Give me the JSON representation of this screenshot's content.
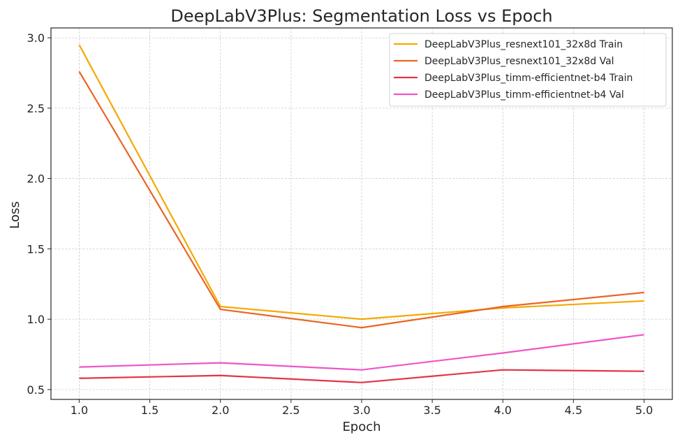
{
  "chart_data": {
    "type": "line",
    "title": "DeepLabV3Plus: Segmentation Loss vs Epoch",
    "xlabel": "Epoch",
    "ylabel": "Loss",
    "xlim": [
      0.8,
      5.2
    ],
    "ylim": [
      0.43,
      3.07
    ],
    "xticks": [
      "1.0",
      "1.5",
      "2.0",
      "2.5",
      "3.0",
      "3.5",
      "4.0",
      "4.5",
      "5.0"
    ],
    "yticks": [
      "0.5",
      "1.0",
      "1.5",
      "2.0",
      "2.5",
      "3.0"
    ],
    "grid": true,
    "legend_position": "top-right",
    "x": [
      1,
      2,
      3,
      4,
      5
    ],
    "series": [
      {
        "name": "DeepLabV3Plus_resnext101_32x8d Train",
        "color": "#F5A800",
        "values": [
          2.95,
          1.09,
          1.0,
          1.08,
          1.13
        ]
      },
      {
        "name": "DeepLabV3Plus_resnext101_32x8d Val",
        "color": "#EB6424",
        "values": [
          2.76,
          1.07,
          0.94,
          1.09,
          1.19
        ]
      },
      {
        "name": "DeepLabV3Plus_timm-efficientnet-b4 Train",
        "color": "#E3344A",
        "values": [
          0.58,
          0.6,
          0.55,
          0.64,
          0.63
        ]
      },
      {
        "name": "DeepLabV3Plus_timm-efficientnet-b4 Val",
        "color": "#EE55C8",
        "values": [
          0.66,
          0.69,
          0.64,
          0.76,
          0.89
        ]
      }
    ]
  }
}
